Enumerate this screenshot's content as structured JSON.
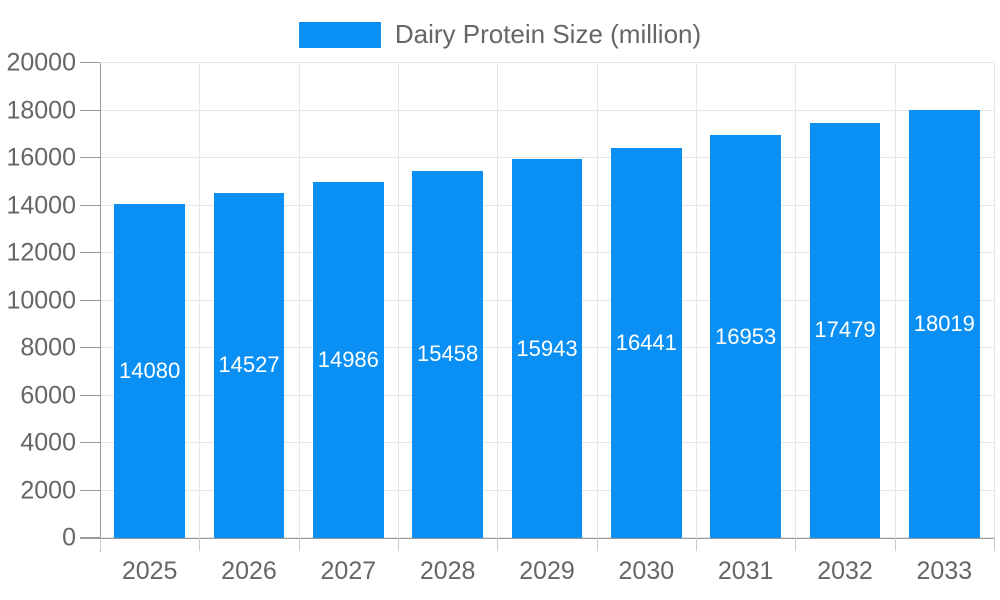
{
  "legend": {
    "label": "Dairy Protein Size (million)"
  },
  "chart_data": {
    "type": "bar",
    "title": "Dairy Protein Size (million)",
    "series_name": "Dairy Protein Size (million)",
    "categories": [
      "2025",
      "2026",
      "2027",
      "2028",
      "2029",
      "2030",
      "2031",
      "2032",
      "2033"
    ],
    "values": [
      14080,
      14527,
      14986,
      15458,
      15943,
      16441,
      16953,
      17479,
      18019
    ],
    "xlabel": "",
    "ylabel": "",
    "ylim": [
      0,
      20000
    ],
    "ytick_step": 2000,
    "y_tick_labels": [
      "0",
      "2000",
      "4000",
      "6000",
      "8000",
      "10000",
      "12000",
      "14000",
      "16000",
      "18000",
      "20000"
    ],
    "grid": true,
    "legend_position": "top-center",
    "bar_color": "#0a90f5",
    "value_label_color": "#ffffff",
    "value_labels_shown": true
  },
  "colors": {
    "bar": "#0a90f5",
    "axis_line": "#999999",
    "gridline": "#e6e6e6",
    "tick_text": "#666666",
    "background": "#ffffff"
  }
}
